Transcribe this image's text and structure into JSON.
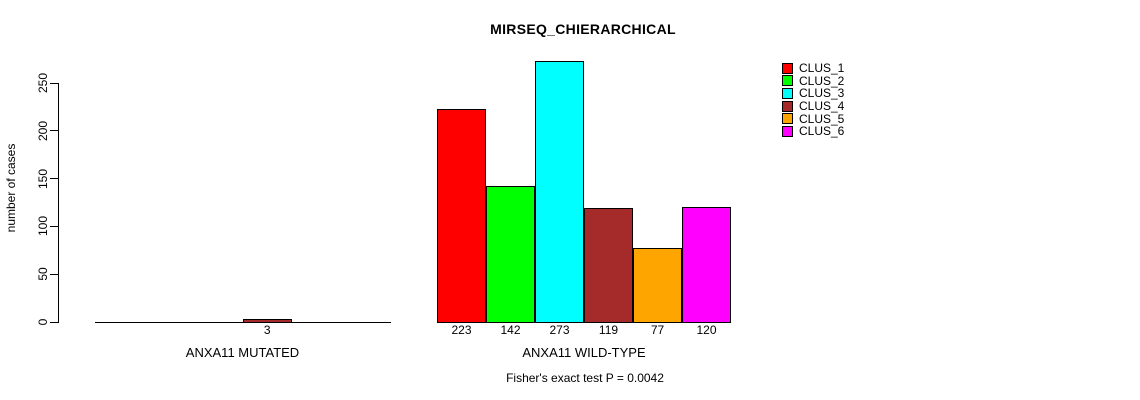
{
  "chart_data": {
    "type": "bar",
    "title": "MIRSEQ_CHIERARCHICAL",
    "ylabel": "number of cases",
    "xlabel": "",
    "ylim": [
      0,
      250
    ],
    "yticks": [
      0,
      50,
      100,
      150,
      200,
      250
    ],
    "grid": false,
    "legend_position": "top-right",
    "clusters": [
      {
        "label": "CLUS_1",
        "color": "#ff0000"
      },
      {
        "label": "CLUS_2",
        "color": "#00ff00"
      },
      {
        "label": "CLUS_3",
        "color": "#00ffff"
      },
      {
        "label": "CLUS_4",
        "color": "#a52a2a"
      },
      {
        "label": "CLUS_5",
        "color": "#ffa500"
      },
      {
        "label": "CLUS_6",
        "color": "#ff00ff"
      }
    ],
    "groups": [
      {
        "label": "ANXA11 MUTATED",
        "values": [
          0,
          0,
          0,
          3,
          0,
          0
        ],
        "bar_labels": [
          "",
          "",
          "",
          "3",
          "",
          ""
        ]
      },
      {
        "label": "ANXA11 WILD-TYPE",
        "values": [
          223,
          142,
          273,
          119,
          77,
          120
        ],
        "bar_labels": [
          "223",
          "142",
          "273",
          "119",
          "77",
          "120"
        ]
      }
    ],
    "annotation": "Fisher's exact test P = 0.0042"
  }
}
